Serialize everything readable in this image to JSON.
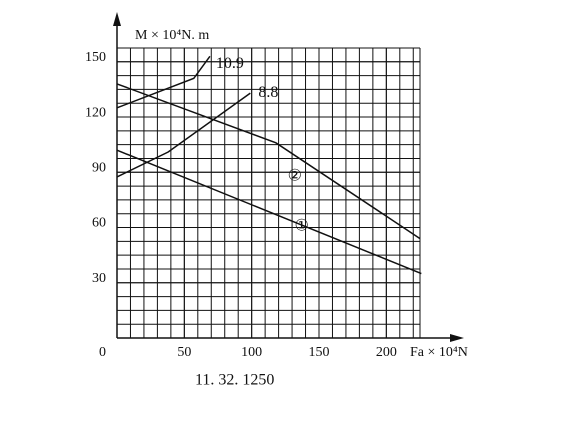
{
  "chart_data": {
    "type": "line",
    "y_label": "M  ×  10⁴N. m",
    "x_label": "Fa  ×  10⁴N",
    "caption": "11. 32. 1250",
    "xlim": [
      0,
      225
    ],
    "ylim": [
      0,
      157.5
    ],
    "xticks": [
      50,
      100,
      150,
      200
    ],
    "yticks": [
      0,
      30,
      60,
      90,
      120,
      150
    ],
    "grid": true,
    "series": [
      {
        "name": "①",
        "color": "#111111",
        "x": [
          0,
          226
        ],
        "values": [
          102,
          35
        ]
      },
      {
        "name": "②",
        "color": "#111111",
        "x": [
          0,
          118,
          225
        ],
        "values": [
          138,
          106,
          54
        ]
      },
      {
        "name": "10.9",
        "color": "#111111",
        "x": [
          0,
          57,
          69
        ],
        "values": [
          125,
          141,
          153
        ]
      },
      {
        "name": "8.8",
        "color": "#111111",
        "x": [
          0,
          38,
          99
        ],
        "values": [
          87.5,
          101,
          133
        ]
      }
    ]
  }
}
